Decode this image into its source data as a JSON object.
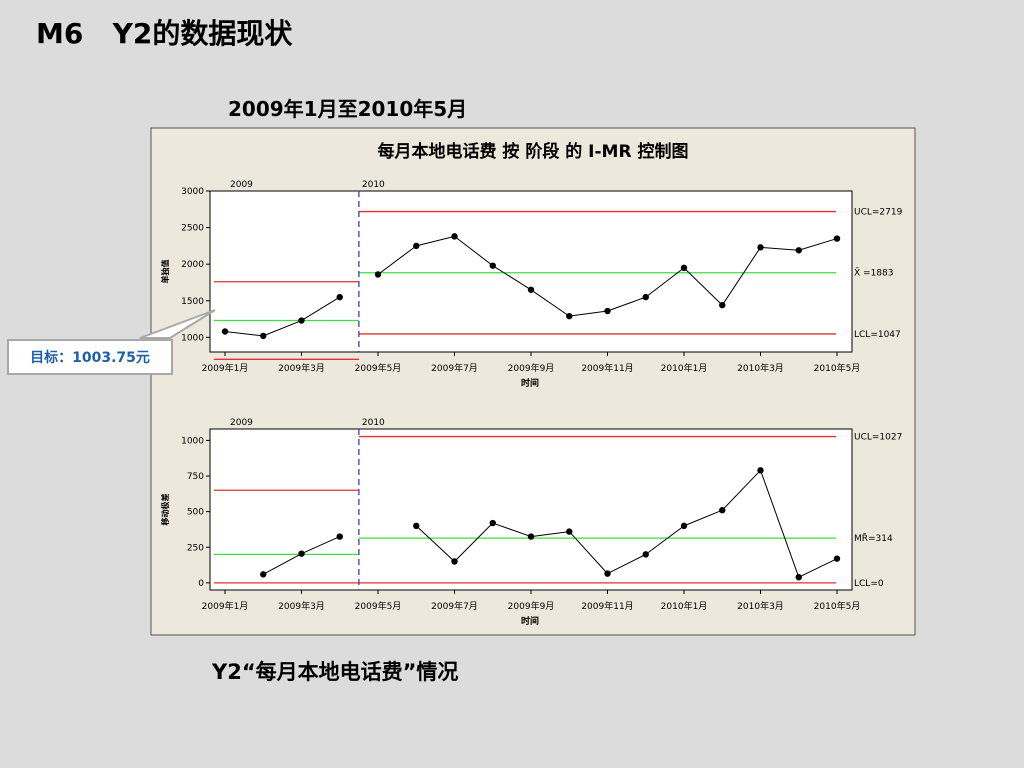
{
  "page": {
    "title": "M6   Y2的数据现状",
    "period": "2009年1月至2010年5月",
    "caption": "Y2“每月本地电话费”情况",
    "target_callout": "目标：1003.75元"
  },
  "colors": {
    "background": "#dcdcdc",
    "chart_background": "#ede8dc",
    "limit_line": "#e03030",
    "center_line": "#39e039",
    "stage_divider": "#3a3ad0",
    "data_line": "#000000"
  },
  "chart_data": {
    "type": "line",
    "title": "每月本地电话费 按 阶段 的 I-MR 控制图",
    "categories": [
      "2009年1月",
      "2009年2月",
      "2009年3月",
      "2009年4月",
      "2009年5月",
      "2009年6月",
      "2009年7月",
      "2009年8月",
      "2009年9月",
      "2009年10月",
      "2009年11月",
      "2009年12月",
      "2010年1月",
      "2010年2月",
      "2010年3月",
      "2010年4月",
      "2010年5月"
    ],
    "tick_labels": [
      "2009年1月",
      "2009年3月",
      "2009年5月",
      "2009年7月",
      "2009年9月",
      "2009年11月",
      "2010年1月",
      "2010年3月",
      "2010年5月"
    ],
    "xlabel": "时间",
    "stages": [
      "2009",
      "2010"
    ],
    "stage_break_after": 4,
    "panels": [
      {
        "ylabel": "单独值",
        "ylim": [
          800,
          3000
        ],
        "yticks": [
          1000,
          1500,
          2000,
          2500,
          3000
        ],
        "values": [
          1080,
          1020,
          1230,
          1550,
          1860,
          2250,
          2380,
          1980,
          1650,
          1290,
          1360,
          1550,
          1950,
          1440,
          2230,
          2190,
          2350
        ],
        "stage_limits": [
          {
            "ucl": 1760,
            "cl": 1230,
            "lcl": 700
          },
          {
            "ucl": 2719,
            "cl": 1883,
            "lcl": 1047
          }
        ],
        "labels": {
          "ucl": "UCL=2719",
          "cl": "X̄ =1883",
          "lcl": "LCL=1047"
        }
      },
      {
        "ylabel": "移动极差",
        "ylim": [
          -50,
          1080
        ],
        "yticks": [
          0,
          250,
          500,
          750,
          1000
        ],
        "values": [
          null,
          60,
          205,
          325,
          null,
          400,
          150,
          420,
          325,
          360,
          65,
          200,
          400,
          510,
          790,
          40,
          170
        ],
        "stage_limits": [
          {
            "ucl": 650,
            "cl": 200,
            "lcl": 0
          },
          {
            "ucl": 1027,
            "cl": 314,
            "lcl": 0
          }
        ],
        "labels": {
          "ucl": "UCL=1027",
          "cl": "MR̄=314",
          "lcl": "LCL=0"
        }
      }
    ]
  }
}
